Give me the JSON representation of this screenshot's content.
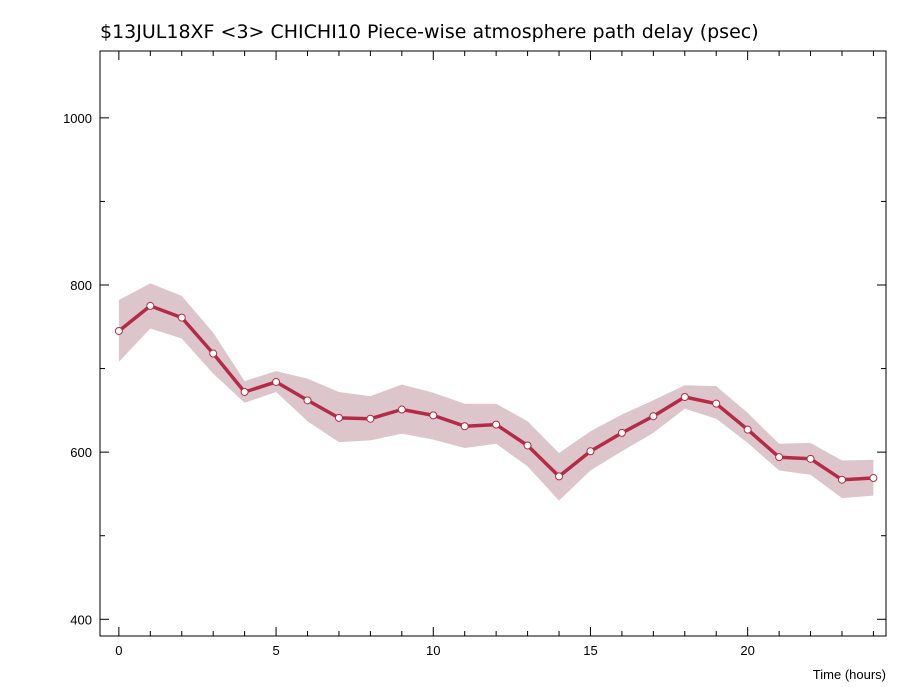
{
  "chart_data": {
    "type": "line",
    "title": "$13JUL18XF <3>  CHICHI10  Piece-wise atmosphere path delay (psec)",
    "xlabel": "Time (hours)",
    "ylabel": "",
    "xlim": [
      -0.6,
      24.4
    ],
    "ylim": [
      380,
      1080
    ],
    "x_ticks": [
      0,
      5,
      10,
      15,
      20
    ],
    "y_ticks": [
      400,
      600,
      800,
      1000
    ],
    "grid": false,
    "colors": {
      "line": "#b52b45",
      "band": "#dcc6cc",
      "marker_fill": "#ffffff"
    },
    "series": [
      {
        "x": [
          0,
          1,
          2,
          3,
          4,
          5,
          6,
          7,
          8,
          9,
          10,
          11,
          12,
          13,
          14,
          15,
          16,
          17,
          18,
          19,
          20,
          21,
          22,
          23,
          24
        ],
        "values": [
          745,
          775,
          761,
          718,
          672,
          684,
          662,
          641,
          640,
          651,
          644,
          631,
          633,
          608,
          571,
          601,
          623,
          643,
          666,
          658,
          627,
          594,
          592,
          567,
          569
        ],
        "upper": [
          782,
          802,
          787,
          743,
          685,
          697,
          688,
          672,
          667,
          681,
          671,
          658,
          658,
          637,
          599,
          625,
          645,
          662,
          680,
          679,
          647,
          610,
          611,
          590,
          591
        ],
        "lower": [
          708,
          748,
          736,
          694,
          659,
          672,
          637,
          612,
          614,
          622,
          615,
          605,
          610,
          583,
          542,
          578,
          601,
          623,
          652,
          640,
          611,
          578,
          573,
          545,
          548
        ]
      }
    ]
  }
}
